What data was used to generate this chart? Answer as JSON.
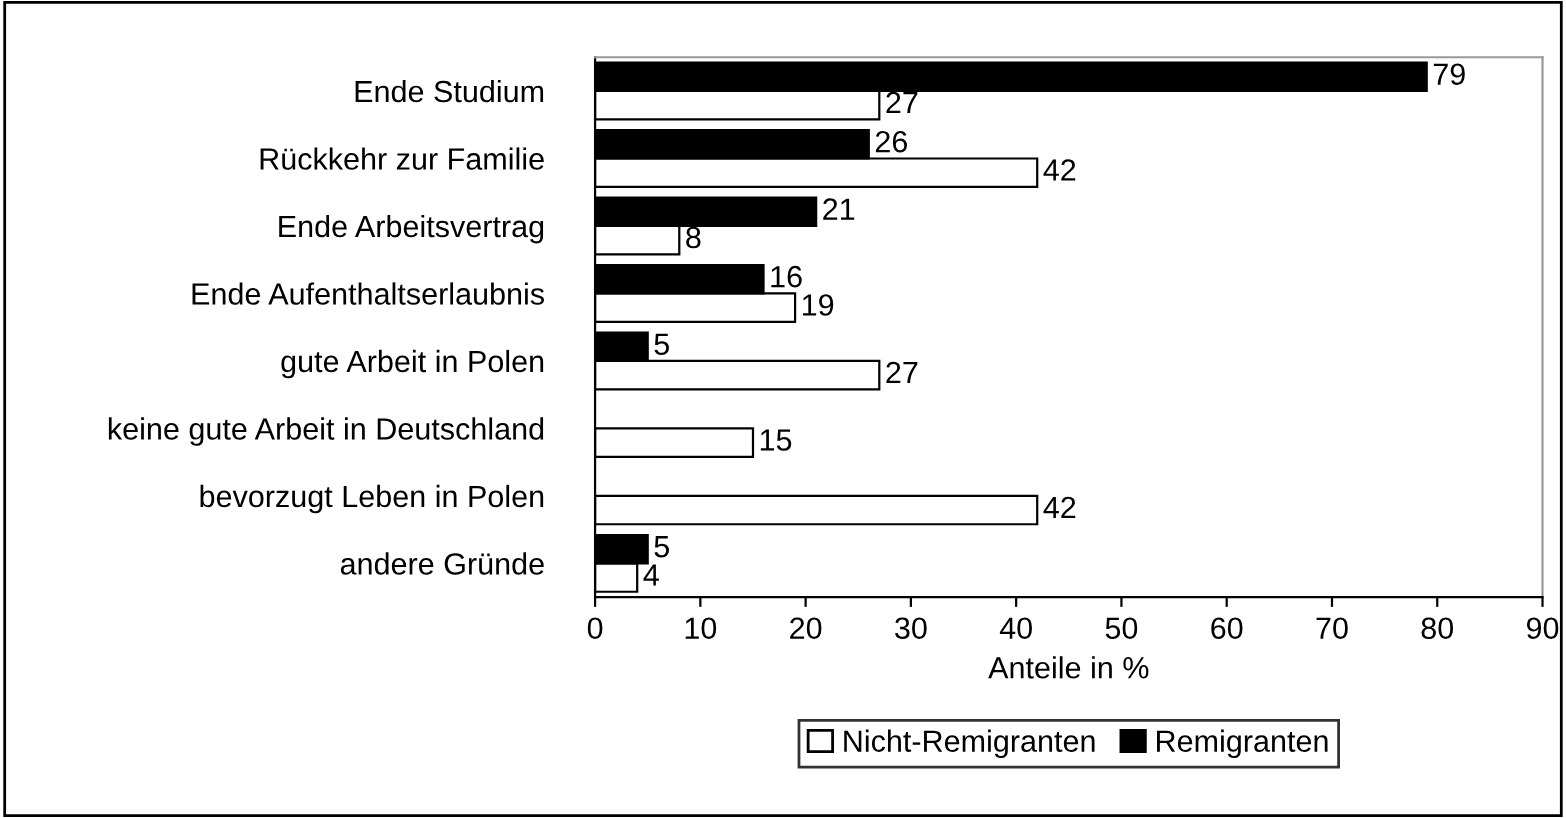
{
  "chart_data": {
    "type": "bar",
    "orientation": "horizontal",
    "xlabel": "Anteile in %",
    "categories": [
      "Ende Studium",
      "Rückkehr zur Familie",
      "Ende Arbeitsvertrag",
      "Ende Aufenthaltserlaubnis",
      "gute Arbeit in Polen",
      "keine gute Arbeit in Deutschland",
      "bevorzugt Leben in Polen",
      "andere Gründe"
    ],
    "series": [
      {
        "name": "Nicht-Remigranten",
        "color": "#ffffff",
        "values": [
          27,
          42,
          8,
          19,
          27,
          15,
          42,
          4
        ]
      },
      {
        "name": "Remigranten",
        "color": "#000000",
        "values": [
          79,
          26,
          21,
          16,
          5,
          null,
          null,
          5
        ]
      }
    ],
    "xlim": [
      0,
      90
    ],
    "xticks": [
      0,
      10,
      20,
      30,
      40,
      50,
      60,
      70,
      80,
      90
    ],
    "data_labels": true,
    "legend": "bottom",
    "grid": false
  }
}
